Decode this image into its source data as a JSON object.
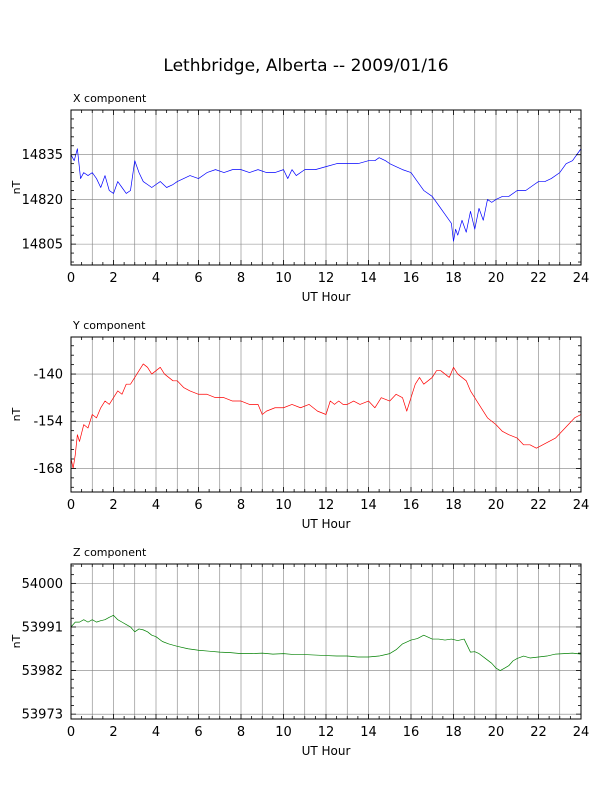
{
  "title": "Lethbridge, Alberta -- 2009/01/16",
  "colors": {
    "x": "#0000ff",
    "y": "#ff0000",
    "z": "#008000",
    "grid": "#808080",
    "frame": "#000000"
  },
  "chart_data": [
    {
      "type": "line",
      "panel_label": "X component",
      "xlabel": "UT Hour",
      "ylabel": "nT",
      "xlim": [
        0,
        24
      ],
      "xticks": [
        0,
        2,
        4,
        6,
        8,
        10,
        12,
        14,
        16,
        18,
        20,
        22,
        24
      ],
      "ylim": [
        14798,
        14850
      ],
      "yticks": [
        14805,
        14820,
        14835
      ],
      "grid": true,
      "series": [
        {
          "color": "#0000ff",
          "x": [
            0,
            0.15,
            0.3,
            0.45,
            0.6,
            0.8,
            1,
            1.2,
            1.4,
            1.6,
            1.8,
            2,
            2.2,
            2.4,
            2.6,
            2.8,
            3,
            3.2,
            3.4,
            3.6,
            3.8,
            4,
            4.2,
            4.5,
            4.8,
            5,
            5.3,
            5.6,
            6,
            6.4,
            6.8,
            7.2,
            7.6,
            8,
            8.4,
            8.8,
            9.2,
            9.6,
            10,
            10.2,
            10.4,
            10.6,
            11,
            11.5,
            12,
            12.5,
            13,
            13.5,
            14,
            14.3,
            14.5,
            14.8,
            15,
            15.3,
            15.6,
            16,
            16.3,
            16.6,
            17,
            17.3,
            17.6,
            17.9,
            18,
            18.1,
            18.2,
            18.4,
            18.6,
            18.8,
            19,
            19.2,
            19.4,
            19.6,
            19.8,
            20,
            20.3,
            20.6,
            21,
            21.4,
            21.8,
            22,
            22.3,
            22.6,
            23,
            23.3,
            23.6,
            24
          ],
          "y": [
            14835,
            14833,
            14837,
            14827,
            14829,
            14828,
            14829,
            14827,
            14824,
            14828,
            14823,
            14822,
            14826,
            14824,
            14822,
            14823,
            14833,
            14829,
            14826,
            14825,
            14824,
            14825,
            14826,
            14824,
            14825,
            14826,
            14827,
            14828,
            14827,
            14829,
            14830,
            14829,
            14830,
            14830,
            14829,
            14830,
            14829,
            14829,
            14830,
            14827,
            14830,
            14828,
            14830,
            14830,
            14831,
            14832,
            14832,
            14832,
            14833,
            14833,
            14834,
            14833,
            14832,
            14831,
            14830,
            14829,
            14826,
            14823,
            14821,
            14818,
            14815,
            14812,
            14806,
            14810,
            14808,
            14813,
            14809,
            14816,
            14810,
            14817,
            14813,
            14820,
            14819,
            14820,
            14821,
            14821,
            14823,
            14823,
            14825,
            14826,
            14826,
            14827,
            14829,
            14832,
            14833,
            14837
          ]
        }
      ]
    },
    {
      "type": "line",
      "panel_label": "Y component",
      "xlabel": "UT Hour",
      "ylabel": "nT",
      "xlim": [
        0,
        24
      ],
      "xticks": [
        0,
        2,
        4,
        6,
        8,
        10,
        12,
        14,
        16,
        18,
        20,
        22,
        24
      ],
      "ylim": [
        -175,
        -129
      ],
      "yticks": [
        -140,
        -154,
        -168
      ],
      "grid": true,
      "series": [
        {
          "color": "#ff0000",
          "x": [
            0,
            0.1,
            0.2,
            0.3,
            0.4,
            0.6,
            0.8,
            1,
            1.2,
            1.4,
            1.6,
            1.8,
            2,
            2.2,
            2.4,
            2.6,
            2.8,
            3,
            3.2,
            3.4,
            3.6,
            3.8,
            4,
            4.2,
            4.4,
            4.6,
            4.8,
            5,
            5.3,
            5.6,
            6,
            6.4,
            6.8,
            7.2,
            7.6,
            8,
            8.4,
            8.8,
            9,
            9.2,
            9.6,
            10,
            10.4,
            10.8,
            11.2,
            11.6,
            12,
            12.2,
            12.4,
            12.6,
            12.8,
            13,
            13.3,
            13.6,
            14,
            14.3,
            14.6,
            15,
            15.3,
            15.6,
            15.8,
            16,
            16.2,
            16.4,
            16.6,
            16.8,
            17,
            17.2,
            17.4,
            17.6,
            17.8,
            18,
            18.2,
            18.4,
            18.6,
            18.8,
            19,
            19.3,
            19.6,
            20,
            20.3,
            20.6,
            21,
            21.3,
            21.6,
            21.9,
            22.2,
            22.5,
            22.8,
            23.1,
            23.4,
            23.7,
            24
          ],
          "y": [
            -165,
            -168,
            -164,
            -158,
            -160,
            -155,
            -156,
            -152,
            -153,
            -150,
            -148,
            -149,
            -147,
            -145,
            -146,
            -143,
            -143,
            -141,
            -139,
            -137,
            -138,
            -140,
            -139,
            -138,
            -140,
            -141,
            -142,
            -142,
            -144,
            -145,
            -146,
            -146,
            -147,
            -147,
            -148,
            -148,
            -149,
            -149,
            -152,
            -151,
            -150,
            -150,
            -149,
            -150,
            -149,
            -151,
            -152,
            -148,
            -149,
            -148,
            -149,
            -149,
            -148,
            -149,
            -148,
            -150,
            -147,
            -148,
            -146,
            -147,
            -151,
            -147,
            -143,
            -141,
            -143,
            -142,
            -141,
            -139,
            -139,
            -140,
            -141,
            -138,
            -140,
            -141,
            -142,
            -145,
            -147,
            -150,
            -153,
            -155,
            -157,
            -158,
            -159,
            -161,
            -161,
            -162,
            -161,
            -160,
            -159,
            -157,
            -155,
            -153,
            -152
          ]
        }
      ]
    },
    {
      "type": "line",
      "panel_label": "Z component",
      "xlabel": "UT Hour",
      "ylabel": "nT",
      "xlim": [
        0,
        24
      ],
      "xticks": [
        0,
        2,
        4,
        6,
        8,
        10,
        12,
        14,
        16,
        18,
        20,
        22,
        24
      ],
      "ylim": [
        53972,
        54004
      ],
      "yticks": [
        54000,
        53991,
        53982,
        53973
      ],
      "grid": true,
      "series": [
        {
          "color": "#008000",
          "x": [
            0,
            0.2,
            0.4,
            0.6,
            0.8,
            1,
            1.2,
            1.4,
            1.6,
            1.8,
            2,
            2.2,
            2.4,
            2.6,
            2.8,
            3,
            3.2,
            3.4,
            3.6,
            3.8,
            4,
            4.3,
            4.6,
            5,
            5.5,
            6,
            6.5,
            7,
            7.5,
            8,
            8.5,
            9,
            9.5,
            10,
            10.5,
            11,
            11.5,
            12,
            12.5,
            13,
            13.5,
            14,
            14.5,
            15,
            15.3,
            15.6,
            16,
            16.3,
            16.6,
            17,
            17.3,
            17.6,
            17.9,
            18.2,
            18.5,
            18.8,
            19,
            19.2,
            19.5,
            19.8,
            20,
            20.2,
            20.4,
            20.6,
            20.8,
            21,
            21.3,
            21.6,
            22,
            22.4,
            22.8,
            23.2,
            23.6,
            24
          ],
          "y": [
            53991,
            53992,
            53992,
            53992.5,
            53992,
            53992.5,
            53992,
            53992.3,
            53992.5,
            53993,
            53993.4,
            53992.5,
            53992,
            53991.5,
            53991,
            53990,
            53990.6,
            53990.4,
            53990,
            53989.3,
            53989,
            53988,
            53987.5,
            53987,
            53986.5,
            53986.2,
            53986,
            53985.8,
            53985.7,
            53985.5,
            53985.5,
            53985.6,
            53985.4,
            53985.5,
            53985.3,
            53985.3,
            53985.2,
            53985.1,
            53985,
            53985,
            53984.8,
            53984.8,
            53985,
            53985.5,
            53986.3,
            53987.5,
            53988.3,
            53988.6,
            53989.3,
            53988.5,
            53988.5,
            53988.3,
            53988.5,
            53988.2,
            53988.5,
            53985.8,
            53985.9,
            53985.5,
            53984.5,
            53983.5,
            53982.5,
            53982,
            53982.5,
            53983,
            53984,
            53984.5,
            53985,
            53984.6,
            53984.8,
            53985,
            53985.4,
            53985.5,
            53985.6,
            53985.4
          ]
        }
      ]
    }
  ]
}
